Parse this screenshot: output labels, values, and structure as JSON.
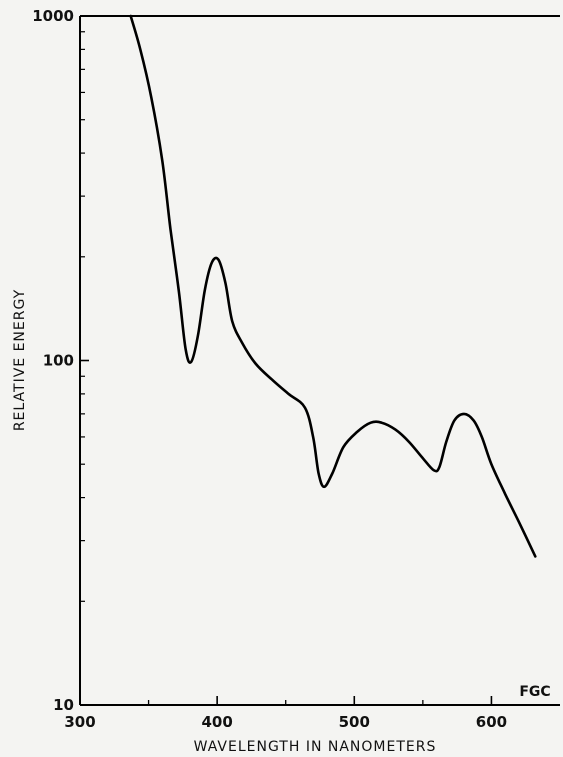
{
  "chart_data": {
    "type": "line",
    "title": "",
    "xlabel": "WAVELENGTH IN NANOMETERS",
    "ylabel": "RELATIVE ENERGY",
    "annotation": "FGC",
    "xlim": [
      300,
      650
    ],
    "ylim": [
      10,
      1000
    ],
    "y_scale": "log",
    "x_ticks": [
      300,
      400,
      500,
      600
    ],
    "x_minor_ticks": [
      350,
      450,
      550
    ],
    "y_ticks": [
      10,
      100,
      1000
    ],
    "y_minor_ticks": [
      20,
      30,
      40,
      50,
      60,
      70,
      80,
      90,
      200,
      300,
      400,
      500,
      600,
      700,
      800,
      900
    ],
    "grid": false,
    "legend": "none",
    "line_color": "#000000",
    "series": [
      {
        "x": [
          337,
          344,
          352,
          360,
          366,
          372,
          377,
          381,
          386,
          391,
          396,
          401,
          406,
          411,
          418,
          428,
          440,
          452,
          464,
          470,
          474,
          478,
          484,
          492,
          502,
          512,
          520,
          530,
          540,
          550,
          558,
          562,
          567,
          573,
          580,
          587,
          593,
          600,
          610,
          620,
          632
        ],
        "y": [
          1000,
          800,
          580,
          380,
          240,
          160,
          108,
          99,
          118,
          160,
          192,
          196,
          168,
          130,
          113,
          98,
          88,
          80,
          73,
          60,
          47,
          43,
          47,
          56,
          62,
          66,
          66,
          63,
          58,
          52,
          48,
          49,
          58,
          67,
          70,
          67,
          60,
          50,
          41,
          34,
          27
        ]
      }
    ]
  }
}
